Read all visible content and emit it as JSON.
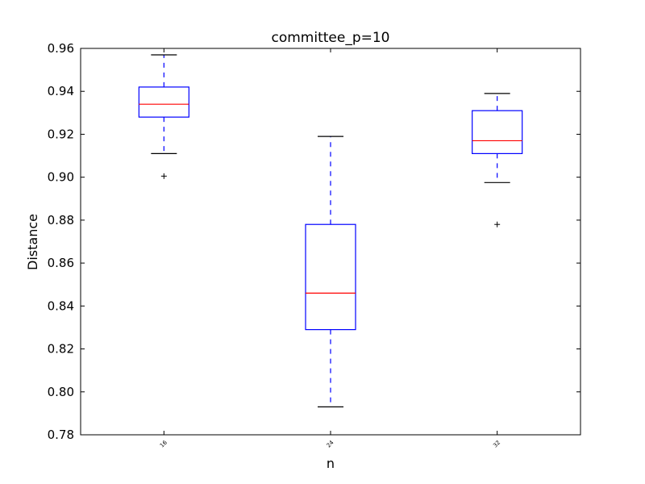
{
  "chart_data": {
    "type": "box",
    "title": "committee_p=10",
    "xlabel": "n",
    "ylabel": "Distance",
    "ylim": [
      0.78,
      0.96
    ],
    "yticks": [
      "0.78",
      "0.80",
      "0.82",
      "0.84",
      "0.86",
      "0.88",
      "0.90",
      "0.92",
      "0.94",
      "0.96"
    ],
    "yticks_values": [
      0.78,
      0.8,
      0.82,
      0.84,
      0.86,
      0.88,
      0.9,
      0.92,
      0.94,
      0.96
    ],
    "categories": [
      "16",
      "24",
      "32"
    ],
    "boxes": [
      {
        "category": "16",
        "whisker_low": 0.911,
        "q1": 0.928,
        "median": 0.934,
        "q3": 0.942,
        "whisker_high": 0.957,
        "outliers": [
          0.9005
        ]
      },
      {
        "category": "24",
        "whisker_low": 0.793,
        "q1": 0.829,
        "median": 0.846,
        "q3": 0.878,
        "whisker_high": 0.919,
        "outliers": []
      },
      {
        "category": "32",
        "whisker_low": 0.8975,
        "q1": 0.911,
        "median": 0.917,
        "q3": 0.931,
        "whisker_high": 0.939,
        "outliers": [
          0.878
        ]
      }
    ],
    "colors": {
      "box": "#0000ff",
      "median": "#ff0000",
      "caps": "#000000",
      "outlier": "#000000"
    },
    "grid": false
  }
}
